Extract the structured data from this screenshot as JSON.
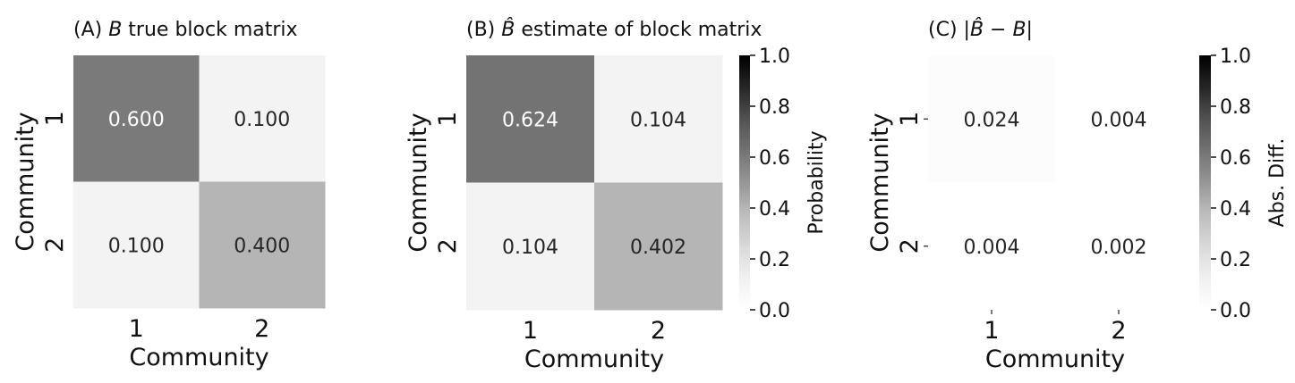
{
  "chart_data": [
    {
      "type": "heatmap",
      "title_prefix": "(A)",
      "title_math": "B",
      "title_suffix": "true block matrix",
      "xlabel": "Community",
      "ylabel": "Community",
      "x_ticks": [
        "1",
        "2"
      ],
      "y_ticks": [
        "1",
        "2"
      ],
      "values": [
        [
          0.6,
          0.1
        ],
        [
          0.1,
          0.4
        ]
      ],
      "cell_labels": [
        [
          "0.600",
          "0.100"
        ],
        [
          "0.100",
          "0.400"
        ]
      ],
      "vmin": 0.0,
      "vmax": 1.0,
      "cmap": "Greys",
      "colorbar": false
    },
    {
      "type": "heatmap",
      "title_prefix": "(B)",
      "title_math": "B̂",
      "title_suffix": "estimate of block matrix",
      "xlabel": "Community",
      "ylabel": "Community",
      "x_ticks": [
        "1",
        "2"
      ],
      "y_ticks": [
        "1",
        "2"
      ],
      "values": [
        [
          0.624,
          0.104
        ],
        [
          0.104,
          0.402
        ]
      ],
      "cell_labels": [
        [
          "0.624",
          "0.104"
        ],
        [
          "0.104",
          "0.402"
        ]
      ],
      "vmin": 0.0,
      "vmax": 1.0,
      "cmap": "Greys",
      "colorbar": true,
      "colorbar_label": "Probability",
      "colorbar_ticks": [
        "0.0",
        "0.2",
        "0.4",
        "0.6",
        "0.8",
        "1.0"
      ]
    },
    {
      "type": "heatmap",
      "title_prefix": "(C)",
      "title_math": "|B̂ − B|",
      "title_suffix": "",
      "xlabel": "Community",
      "ylabel": "Community",
      "x_ticks": [
        "1",
        "2"
      ],
      "y_ticks": [
        "1",
        "2"
      ],
      "values": [
        [
          0.024,
          0.004
        ],
        [
          0.004,
          0.002
        ]
      ],
      "cell_labels": [
        [
          "0.024",
          "0.004"
        ],
        [
          "0.004",
          "0.002"
        ]
      ],
      "vmin": 0.0,
      "vmax": 1.0,
      "cmap": "Greys",
      "colorbar": true,
      "colorbar_label": "Abs. Diff.",
      "colorbar_ticks": [
        "0.0",
        "0.2",
        "0.4",
        "0.6",
        "0.8",
        "1.0"
      ]
    }
  ]
}
